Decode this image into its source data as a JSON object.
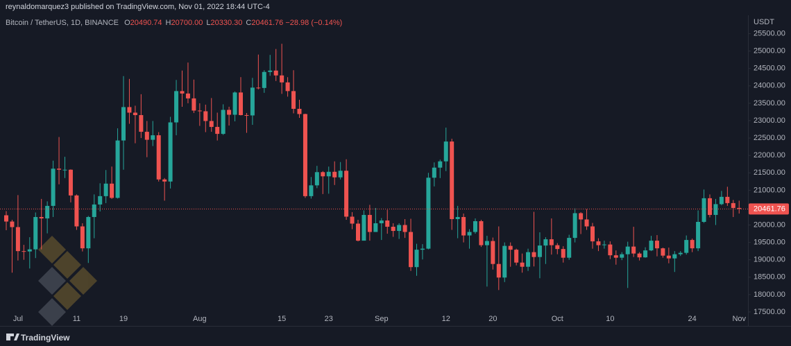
{
  "header": {
    "text": "reynaldomarquez3 published on TradingView.com, Nov 01, 2022 18:44 UTC-4"
  },
  "footer": {
    "brand": "TradingView"
  },
  "chart_data": {
    "type": "candlestick",
    "title": "Bitcoin / TetherUS, 1D, BINANCE",
    "legend_items": [
      {
        "key": "O",
        "value": "20490.74"
      },
      {
        "key": "H",
        "value": "20700.00"
      },
      {
        "key": "L",
        "value": "20330.30"
      },
      {
        "key": "C",
        "value": "20461.76"
      }
    ],
    "change": "−28.98 (−0.14%)",
    "y_axis_label": "USDT",
    "last_price": 20461.76,
    "up_color": "#26a69a",
    "down_color": "#ef5350",
    "categories": [
      null,
      null,
      "Jul",
      null,
      null,
      null,
      null,
      null,
      null,
      null,
      null,
      null,
      "11",
      null,
      null,
      null,
      null,
      null,
      null,
      null,
      "19",
      null,
      null,
      null,
      null,
      null,
      null,
      null,
      null,
      null,
      null,
      null,
      null,
      "Aug",
      null,
      null,
      null,
      null,
      null,
      null,
      null,
      null,
      null,
      null,
      null,
      null,
      null,
      "15",
      null,
      null,
      null,
      null,
      null,
      null,
      null,
      "23",
      null,
      null,
      null,
      null,
      null,
      null,
      null,
      null,
      "Sep",
      null,
      null,
      null,
      null,
      null,
      null,
      null,
      null,
      null,
      null,
      "12",
      null,
      null,
      null,
      null,
      null,
      null,
      null,
      "20",
      null,
      null,
      null,
      null,
      null,
      null,
      null,
      null,
      null,
      null,
      "Oct",
      null,
      null,
      null,
      null,
      null,
      null,
      null,
      null,
      "10",
      null,
      null,
      null,
      null,
      null,
      null,
      null,
      null,
      null,
      null,
      null,
      null,
      null,
      "24",
      null,
      null,
      null,
      null,
      null,
      null,
      null,
      "Nov"
    ],
    "series": {
      "open": [
        20280,
        20100,
        19940,
        19250,
        19240,
        19300,
        20230,
        20190,
        20550,
        21620,
        21590,
        21590,
        20850,
        19960,
        19330,
        20230,
        20590,
        20830,
        21190,
        20780,
        22430,
        23390,
        23230,
        23160,
        22680,
        22450,
        22580,
        21310,
        21250,
        22950,
        23850,
        23780,
        23640,
        23290,
        23270,
        22990,
        22820,
        22620,
        23310,
        23170,
        23810,
        23160,
        23150,
        23950,
        23940,
        24400,
        24440,
        24300,
        24100,
        23850,
        23340,
        23190,
        20830,
        21140,
        21520,
        21400,
        21530,
        21370,
        21560,
        20240,
        20040,
        19550,
        20290,
        19800,
        20050,
        20130,
        19950,
        19830,
        20000,
        19800,
        18790,
        19290,
        19320,
        21360,
        21650,
        21830,
        22400,
        20170,
        20230,
        19700,
        19800,
        20110,
        19420,
        19540,
        18880,
        18490,
        19400,
        19290,
        18920,
        18800,
        19220,
        19080,
        19410,
        19590,
        19420,
        19310,
        19060,
        19630,
        20340,
        20160,
        19960,
        19530,
        19420,
        19440,
        19130,
        19060,
        19160,
        19380,
        19180,
        19070,
        19270,
        19550,
        19330,
        19120,
        19040,
        19160,
        19200,
        19570,
        19330,
        20090,
        20770,
        20290,
        20600,
        20810,
        20630,
        20490.74
      ],
      "high": [
        20400,
        20150,
        20860,
        19430,
        19650,
        20360,
        20750,
        20680,
        21850,
        22530,
        21960,
        21600,
        20880,
        20050,
        20260,
        20880,
        21200,
        21580,
        21680,
        22780,
        24280,
        24200,
        23430,
        23760,
        22990,
        22990,
        22670,
        21350,
        23110,
        24170,
        24440,
        24670,
        24180,
        23500,
        23460,
        23650,
        23230,
        23470,
        23400,
        23840,
        24250,
        23220,
        24230,
        24900,
        24450,
        24890,
        25060,
        25210,
        24250,
        24450,
        23600,
        23200,
        21380,
        21700,
        21550,
        21680,
        21830,
        21810,
        21890,
        20370,
        20150,
        20420,
        20580,
        20490,
        20200,
        20440,
        20050,
        20050,
        20170,
        20180,
        19460,
        19450,
        21500,
        21800,
        21880,
        22800,
        22480,
        20550,
        20330,
        19880,
        20190,
        20150,
        19690,
        19640,
        19960,
        19500,
        19500,
        19320,
        19180,
        19320,
        20380,
        19790,
        19650,
        20190,
        19480,
        19390,
        19720,
        20480,
        20370,
        20460,
        20060,
        19620,
        19550,
        19530,
        19270,
        19220,
        19520,
        19950,
        19220,
        19360,
        19690,
        19710,
        19350,
        19350,
        19250,
        19250,
        19700,
        19610,
        20420,
        21020,
        20880,
        20750,
        20980,
        21100,
        20720,
        20700
      ],
      "low": [
        19850,
        18630,
        18980,
        19000,
        18750,
        19050,
        19300,
        19760,
        20230,
        21170,
        21350,
        20650,
        19860,
        19240,
        18910,
        19620,
        20390,
        20630,
        20750,
        20760,
        21590,
        22910,
        22350,
        22500,
        21950,
        22270,
        21250,
        20700,
        21050,
        22580,
        23400,
        23500,
        23220,
        22850,
        22670,
        22680,
        22430,
        22590,
        22860,
        22980,
        23150,
        22650,
        22880,
        23900,
        23800,
        24290,
        24140,
        23770,
        23690,
        23210,
        23080,
        20780,
        20760,
        21060,
        20890,
        20900,
        21150,
        21310,
        20150,
        19880,
        19530,
        19600,
        19550,
        19800,
        19570,
        19750,
        19660,
        19600,
        19630,
        18680,
        18540,
        19010,
        19300,
        21110,
        21350,
        21550,
        19860,
        19620,
        19500,
        19320,
        19750,
        19370,
        18230,
        18720,
        18130,
        18360,
        18800,
        18840,
        18630,
        18680,
        18810,
        18470,
        18880,
        19150,
        19160,
        18920,
        19000,
        19500,
        19740,
        19860,
        19320,
        19250,
        19320,
        19020,
        18860,
        18990,
        18190,
        19080,
        18980,
        19060,
        19250,
        19100,
        19060,
        18900,
        18650,
        19110,
        19150,
        19220,
        19250,
        20060,
        20220,
        20000,
        20570,
        20550,
        20230,
        20330.3
      ],
      "close": [
        20100,
        19940,
        19250,
        19240,
        19300,
        20230,
        20190,
        20550,
        21620,
        21590,
        21590,
        20850,
        19960,
        19330,
        20230,
        20590,
        20830,
        21190,
        20780,
        22430,
        23390,
        23230,
        23160,
        22680,
        22450,
        22580,
        21310,
        21250,
        22950,
        23850,
        23780,
        23640,
        23290,
        23270,
        22990,
        22820,
        22620,
        23310,
        23170,
        23810,
        23160,
        23150,
        23950,
        23940,
        24400,
        24440,
        24300,
        24100,
        23850,
        23340,
        23190,
        20830,
        21140,
        21520,
        21400,
        21530,
        21370,
        21560,
        20240,
        20040,
        19550,
        20290,
        19800,
        20050,
        20130,
        19950,
        19830,
        20000,
        19800,
        18790,
        19290,
        19320,
        21360,
        21650,
        21830,
        22400,
        20170,
        20230,
        19700,
        19800,
        20110,
        19420,
        19540,
        18880,
        18490,
        19400,
        19290,
        18920,
        18800,
        19220,
        19080,
        19410,
        19590,
        19420,
        19310,
        19060,
        19630,
        20340,
        20160,
        19960,
        19530,
        19420,
        19440,
        19130,
        19060,
        19160,
        19380,
        19180,
        19070,
        19270,
        19550,
        19330,
        19120,
        19040,
        19160,
        19200,
        19570,
        19330,
        20090,
        20770,
        20290,
        20600,
        20810,
        20630,
        20490,
        20461.76
      ]
    },
    "ylim": [
      17100,
      26030
    ],
    "yticks": [
      {
        "value": 17500,
        "label": "17500.00"
      },
      {
        "value": 18000,
        "label": "18000.00"
      },
      {
        "value": 18500,
        "label": "18500.00"
      },
      {
        "value": 19000,
        "label": "19000.00"
      },
      {
        "value": 19500,
        "label": "19500.00"
      },
      {
        "value": 20000,
        "label": "20000.00"
      },
      {
        "value": 20500,
        "label": "20500.00"
      },
      {
        "value": 21000,
        "label": "21000.00"
      },
      {
        "value": 21500,
        "label": "21500.00"
      },
      {
        "value": 22000,
        "label": "22000.00"
      },
      {
        "value": 22500,
        "label": "22500.00"
      },
      {
        "value": 23000,
        "label": "23000.00"
      },
      {
        "value": 23500,
        "label": "23500.00"
      },
      {
        "value": 24000,
        "label": "24000.00"
      },
      {
        "value": 24500,
        "label": "24500.00"
      },
      {
        "value": 25000,
        "label": "25000.00"
      },
      {
        "value": 25500,
        "label": "25500.00"
      }
    ]
  }
}
